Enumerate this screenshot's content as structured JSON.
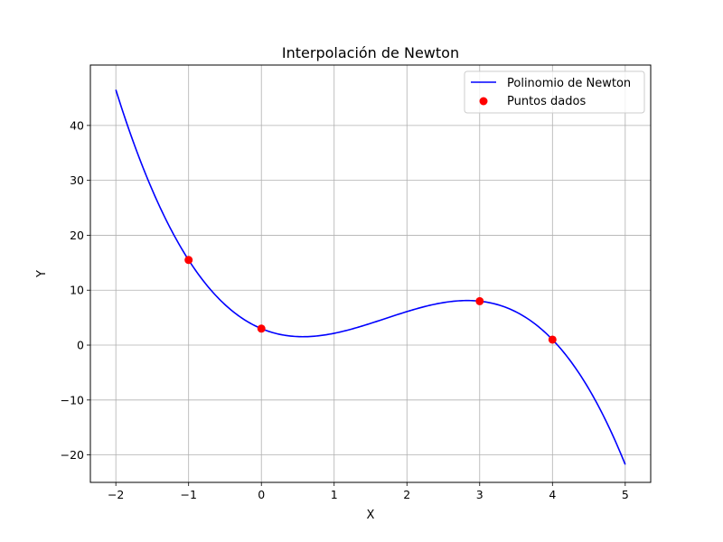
{
  "chart_data": {
    "type": "line",
    "title": "Interpolación de Newton",
    "xlabel": "X",
    "ylabel": "Y",
    "xlim": [
      -2.35,
      5.35
    ],
    "ylim": [
      -25,
      51
    ],
    "xticks": [
      -2,
      -1,
      0,
      1,
      2,
      3,
      4,
      5
    ],
    "yticks": [
      -20,
      -10,
      0,
      10,
      20,
      30,
      40
    ],
    "xtick_labels": [
      "−2",
      "−1",
      "0",
      "1",
      "2",
      "3",
      "4",
      "5"
    ],
    "ytick_labels": [
      "−20",
      "−10",
      "0",
      "10",
      "20",
      "30",
      "40"
    ],
    "grid": true,
    "legend_position": "top-right",
    "series": [
      {
        "name": "Polinomio de Newton",
        "kind": "line",
        "color": "#0000ff",
        "x_range": [
          -2,
          5
        ],
        "polynomial": {
          "x_nodes": [
            -1,
            0,
            3,
            4
          ],
          "y_nodes": [
            15.5,
            3,
            8,
            1
          ]
        }
      },
      {
        "name": "Puntos dados",
        "kind": "scatter",
        "color": "#ff0000",
        "x": [
          -1,
          0,
          3,
          4
        ],
        "y": [
          15.5,
          3,
          8,
          1
        ]
      }
    ]
  }
}
